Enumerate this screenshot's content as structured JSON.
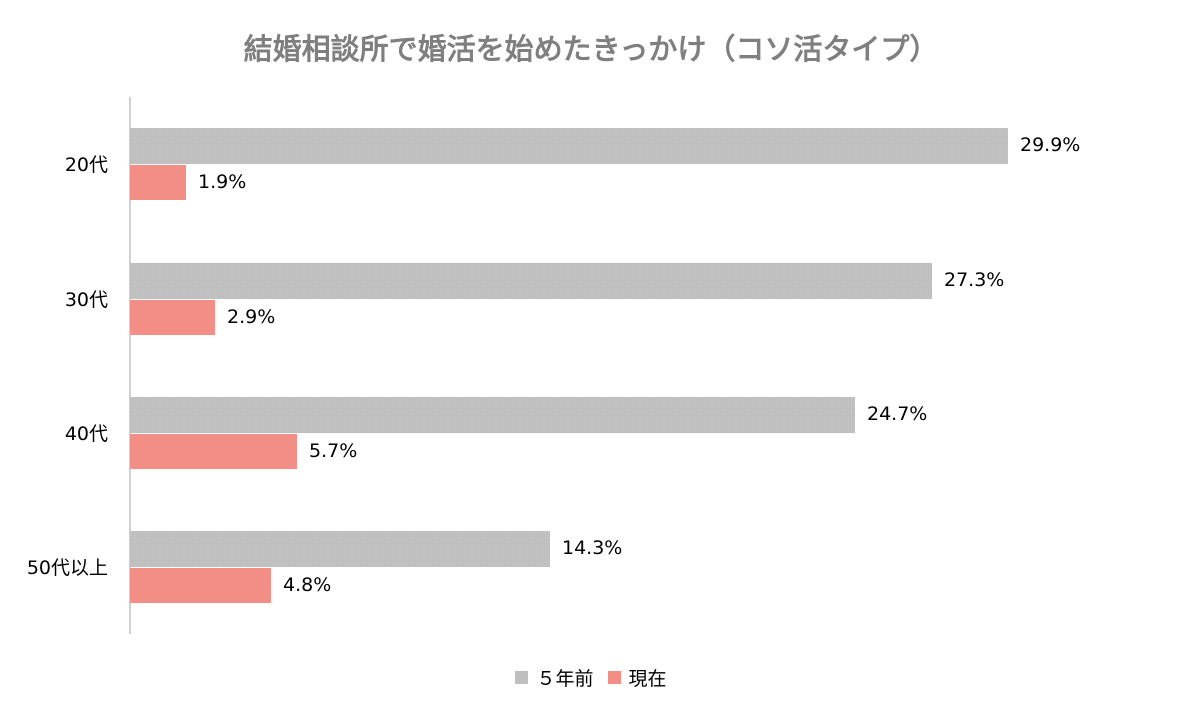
{
  "chart_data": {
    "type": "bar",
    "orientation": "horizontal",
    "title": "結婚相談所で婚活を始めたきっかけ（コソ活タイプ）",
    "categories": [
      "20代",
      "30代",
      "40代",
      "50代以上"
    ],
    "series": [
      {
        "name": "５年前",
        "color": "#bfbfbf",
        "values": [
          29.9,
          27.3,
          24.7,
          14.3
        ],
        "labels": [
          "29.9%",
          "27.3%",
          "24.7%",
          "14.3%"
        ]
      },
      {
        "name": "現在",
        "color": "#f28e86",
        "values": [
          1.9,
          2.9,
          5.7,
          4.8
        ],
        "labels": [
          "1.9%",
          "2.9%",
          "5.7%",
          "4.8%"
        ]
      }
    ],
    "xlabel": "",
    "ylabel": "",
    "xlim": [
      0,
      30
    ],
    "grid": false,
    "legend_position": "bottom",
    "data_labels": true
  },
  "legend": [
    {
      "label": "５年前",
      "color": "#bfbfbf"
    },
    {
      "label": "現在",
      "color": "#f28e86"
    }
  ]
}
